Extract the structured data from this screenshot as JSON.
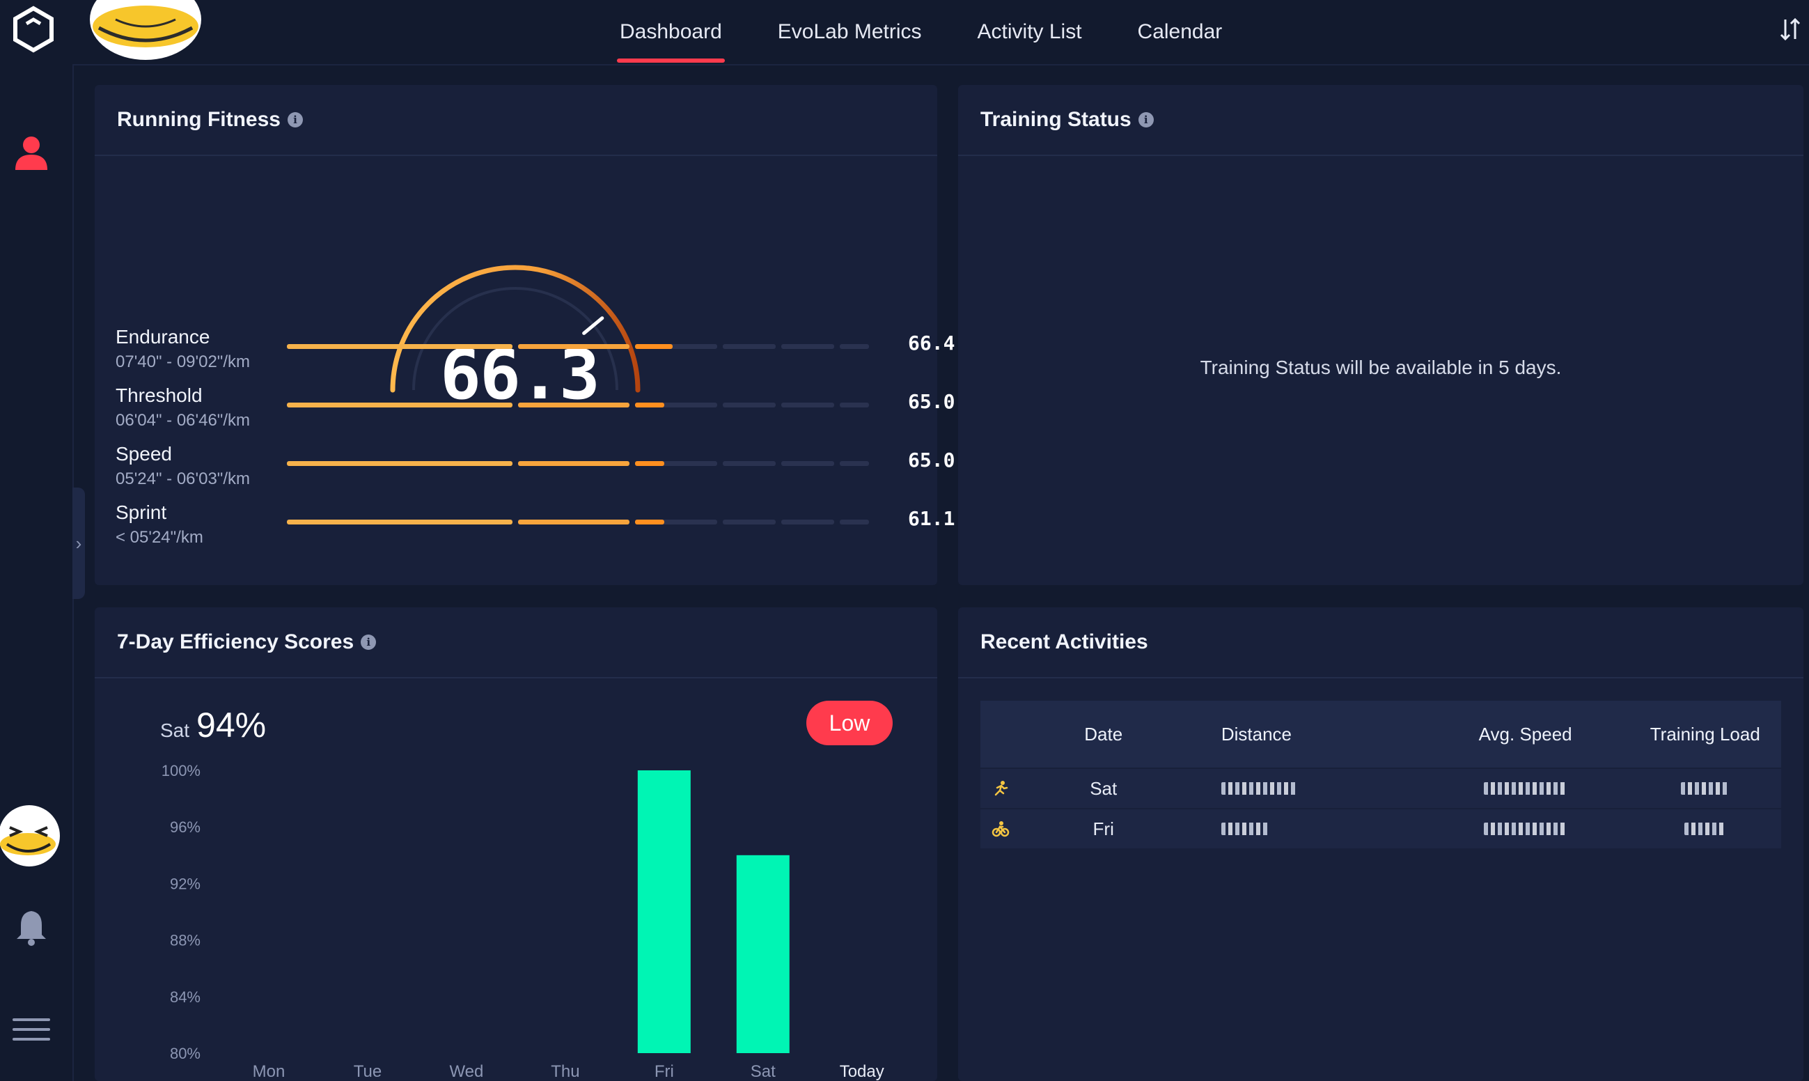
{
  "nav": {
    "tabs": [
      {
        "label": "Dashboard",
        "active": true
      },
      {
        "label": "EvoLab Metrics"
      },
      {
        "label": "Activity List"
      },
      {
        "label": "Calendar"
      }
    ]
  },
  "running_fitness": {
    "title": "Running Fitness",
    "score": "66.3",
    "gauge_level": 0.78,
    "metrics": [
      {
        "name": "Endurance",
        "range": "07'40\" - 09'02\"/km",
        "value": "66.4",
        "fill": 0.66
      },
      {
        "name": "Threshold",
        "range": "06'04\" - 06'46\"/km",
        "value": "65.0",
        "fill": 0.645
      },
      {
        "name": "Speed",
        "range": "05'24\" - 06'03\"/km",
        "value": "65.0",
        "fill": 0.645
      },
      {
        "name": "Sprint",
        "range": "< 05'24\"/km",
        "value": "61.1",
        "fill": 0.645
      }
    ]
  },
  "training_status": {
    "title": "Training Status",
    "message": "Training Status will be available in 5 days."
  },
  "efficiency": {
    "title": "7-Day Efficiency Scores",
    "selected_day": "Sat",
    "selected_value": "94%",
    "badge": "Low"
  },
  "chart_data": {
    "type": "bar",
    "categories": [
      "Mon",
      "Tue",
      "Wed",
      "Thu",
      "Fri",
      "Sat",
      "Today"
    ],
    "values": [
      null,
      null,
      null,
      null,
      100,
      94,
      null
    ],
    "yticks": [
      "100%",
      "96%",
      "92%",
      "88%",
      "84%",
      "80%"
    ],
    "ylim": [
      80,
      100
    ],
    "title": "",
    "xlabel": "",
    "ylabel": "",
    "bar_color": "#00f5b4"
  },
  "recent": {
    "title": "Recent Activities",
    "headers": [
      "Date",
      "Distance",
      "Avg. Speed",
      "Training Load"
    ],
    "rows": [
      {
        "date": "Sat",
        "icon": "running-icon"
      },
      {
        "date": "Fri",
        "icon": "cycling-icon"
      }
    ]
  },
  "colors": {
    "accent": "#ff3b4d",
    "orange": "#f4a23a",
    "green": "#00f5b4"
  }
}
